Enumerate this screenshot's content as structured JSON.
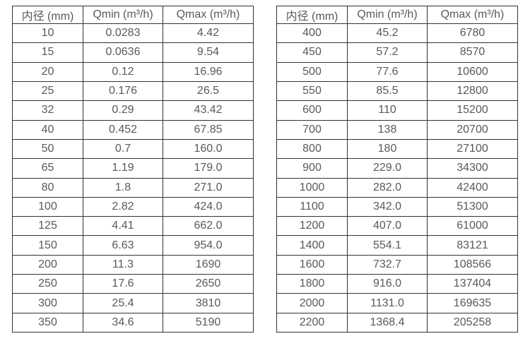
{
  "colors": {
    "background": "#ffffff",
    "border": "#333333",
    "text": "#595959"
  },
  "chart_data": [
    {
      "type": "table",
      "name": "flow-spec-table-small-diameters",
      "columns": [
        "内径 (mm)",
        "Qmin (m³/h)",
        "Qmax (m³/h)"
      ],
      "rows": [
        [
          "10",
          "0.0283",
          "4.42"
        ],
        [
          "15",
          "0.0636",
          "9.54"
        ],
        [
          "20",
          "0.12",
          "16.96"
        ],
        [
          "25",
          "0.176",
          "26.5"
        ],
        [
          "32",
          "0.29",
          "43.42"
        ],
        [
          "40",
          "0.452",
          "67.85"
        ],
        [
          "50",
          "0.7",
          "160.0"
        ],
        [
          "65",
          "1.19",
          "179.0"
        ],
        [
          "80",
          "1.8",
          "271.0"
        ],
        [
          "100",
          "2.82",
          "424.0"
        ],
        [
          "125",
          "4.41",
          "662.0"
        ],
        [
          "150",
          "6.63",
          "954.0"
        ],
        [
          "200",
          "11.3",
          "1690"
        ],
        [
          "250",
          "17.6",
          "2650"
        ],
        [
          "300",
          "25.4",
          "3810"
        ],
        [
          "350",
          "34.6",
          "5190"
        ]
      ]
    },
    {
      "type": "table",
      "name": "flow-spec-table-large-diameters",
      "columns": [
        "内径 (mm)",
        "Qmin (m³/h)",
        "Qmax (m³/h)"
      ],
      "rows": [
        [
          "400",
          "45.2",
          "6780"
        ],
        [
          "450",
          "57.2",
          "8570"
        ],
        [
          "500",
          "77.6",
          "10600"
        ],
        [
          "550",
          "85.5",
          "12800"
        ],
        [
          "600",
          "110",
          "15200"
        ],
        [
          "700",
          "138",
          "20700"
        ],
        [
          "800",
          "180",
          "27100"
        ],
        [
          "900",
          "229.0",
          "34300"
        ],
        [
          "1000",
          "282.0",
          "42400"
        ],
        [
          "1100",
          "342.0",
          "51300"
        ],
        [
          "1200",
          "407.0",
          "61000"
        ],
        [
          "1400",
          "554.1",
          "83121"
        ],
        [
          "1600",
          "732.7",
          "108566"
        ],
        [
          "1800",
          "916.0",
          "137404"
        ],
        [
          "2000",
          "1131.0",
          "169635"
        ],
        [
          "2200",
          "1368.4",
          "205258"
        ]
      ]
    }
  ]
}
